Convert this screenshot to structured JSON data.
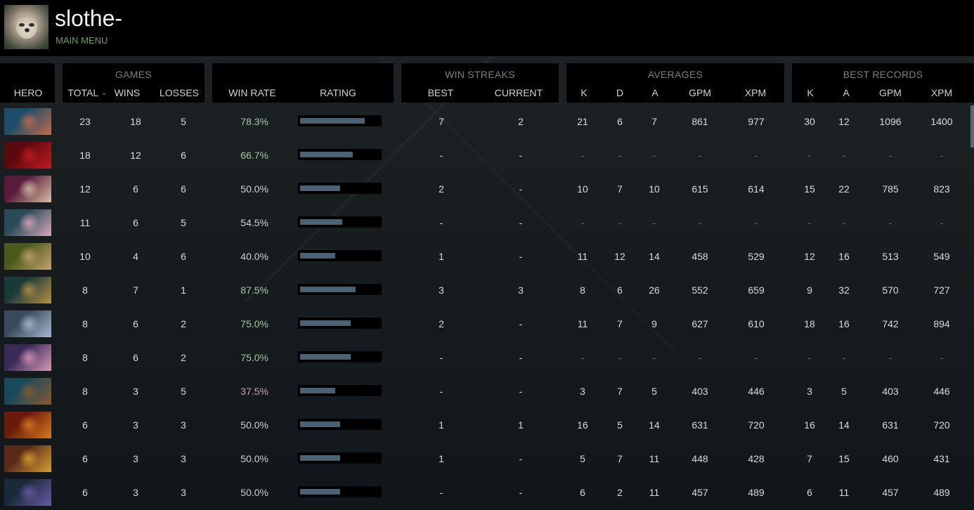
{
  "profile": {
    "username": "slothe-",
    "menu_link": "MAIN MENU"
  },
  "header": {
    "hero": {
      "label": "HERO"
    },
    "games": {
      "group": "GAMES",
      "total": "TOTAL",
      "wins": "WINS",
      "losses": "LOSSES",
      "sort_icon": "chevron-down"
    },
    "winrate": {
      "winrate": "WIN RATE",
      "rating": "RATING"
    },
    "streaks": {
      "group": "WIN STREAKS",
      "best": "BEST",
      "current": "CURRENT"
    },
    "averages": {
      "group": "AVERAGES",
      "k": "K",
      "d": "D",
      "a": "A",
      "gpm": "GPM",
      "xpm": "XPM"
    },
    "records": {
      "group": "BEST RECORDS",
      "k": "K",
      "a": "A",
      "gpm": "GPM",
      "xpm": "XPM"
    }
  },
  "colors": {
    "win_good": "#a6c8a0",
    "win_bad": "#caa6a6",
    "rating_fill": "#4a6271",
    "menu_link": "#6f9d5e"
  },
  "rows": [
    {
      "portrait": [
        "#1d4d6a",
        "#c46a4a"
      ],
      "total": "23",
      "wins": "18",
      "losses": "5",
      "winrate": "78.3%",
      "wr_class": "green",
      "rating": 92,
      "best": "7",
      "current": "2",
      "avg_k": "21",
      "avg_d": "6",
      "avg_a": "7",
      "avg_gpm": "861",
      "avg_xpm": "977",
      "rec_k": "30",
      "rec_a": "12",
      "rec_gpm": "1096",
      "rec_xpm": "1400"
    },
    {
      "portrait": [
        "#5a0a0e",
        "#c41a22"
      ],
      "total": "18",
      "wins": "12",
      "losses": "6",
      "winrate": "66.7%",
      "wr_class": "green",
      "rating": 75,
      "best": "-",
      "current": "-",
      "avg_k": "-",
      "avg_d": "-",
      "avg_a": "-",
      "avg_gpm": "-",
      "avg_xpm": "-",
      "rec_k": "-",
      "rec_a": "-",
      "rec_gpm": "-",
      "rec_xpm": "-"
    },
    {
      "portrait": [
        "#5a1a3a",
        "#d8c0a8"
      ],
      "total": "12",
      "wins": "6",
      "losses": "6",
      "winrate": "50.0%",
      "wr_class": "neutral",
      "rating": 57,
      "best": "2",
      "current": "-",
      "avg_k": "10",
      "avg_d": "7",
      "avg_a": "10",
      "avg_gpm": "615",
      "avg_xpm": "614",
      "rec_k": "15",
      "rec_a": "22",
      "rec_gpm": "785",
      "rec_xpm": "823"
    },
    {
      "portrait": [
        "#2a4a5a",
        "#d8a8b8"
      ],
      "total": "11",
      "wins": "6",
      "losses": "5",
      "winrate": "54.5%",
      "wr_class": "neutral",
      "rating": 60,
      "best": "-",
      "current": "-",
      "avg_k": "-",
      "avg_d": "-",
      "avg_a": "-",
      "avg_gpm": "-",
      "avg_xpm": "-",
      "rec_k": "-",
      "rec_a": "-",
      "rec_gpm": "-",
      "rec_xpm": "-"
    },
    {
      "portrait": [
        "#4a5a1a",
        "#c8a070"
      ],
      "total": "10",
      "wins": "4",
      "losses": "6",
      "winrate": "40.0%",
      "wr_class": "neutral",
      "rating": 50,
      "best": "1",
      "current": "-",
      "avg_k": "11",
      "avg_d": "12",
      "avg_a": "14",
      "avg_gpm": "458",
      "avg_xpm": "529",
      "rec_k": "12",
      "rec_a": "16",
      "rec_gpm": "513",
      "rec_xpm": "549"
    },
    {
      "portrait": [
        "#1a3a3a",
        "#b89040"
      ],
      "total": "8",
      "wins": "7",
      "losses": "1",
      "winrate": "87.5%",
      "wr_class": "green",
      "rating": 79,
      "best": "3",
      "current": "3",
      "avg_k": "8",
      "avg_d": "6",
      "avg_a": "26",
      "avg_gpm": "552",
      "avg_xpm": "659",
      "rec_k": "9",
      "rec_a": "32",
      "rec_gpm": "570",
      "rec_xpm": "727"
    },
    {
      "portrait": [
        "#3a4a5a",
        "#a8b8d0"
      ],
      "total": "8",
      "wins": "6",
      "losses": "2",
      "winrate": "75.0%",
      "wr_class": "green",
      "rating": 72,
      "best": "2",
      "current": "-",
      "avg_k": "11",
      "avg_d": "7",
      "avg_a": "9",
      "avg_gpm": "627",
      "avg_xpm": "610",
      "rec_k": "18",
      "rec_a": "16",
      "rec_gpm": "742",
      "rec_xpm": "894"
    },
    {
      "portrait": [
        "#3a2a5a",
        "#d89ab8"
      ],
      "total": "8",
      "wins": "6",
      "losses": "2",
      "winrate": "75.0%",
      "wr_class": "green",
      "rating": 72,
      "best": "-",
      "current": "-",
      "avg_k": "-",
      "avg_d": "-",
      "avg_a": "-",
      "avg_gpm": "-",
      "avg_xpm": "-",
      "rec_k": "-",
      "rec_a": "-",
      "rec_gpm": "-",
      "rec_xpm": "-"
    },
    {
      "portrait": [
        "#1a4a5a",
        "#8a5a30"
      ],
      "total": "8",
      "wins": "3",
      "losses": "5",
      "winrate": "37.5%",
      "wr_class": "red",
      "rating": 50,
      "best": "-",
      "current": "-",
      "avg_k": "3",
      "avg_d": "7",
      "avg_a": "5",
      "avg_gpm": "403",
      "avg_xpm": "446",
      "rec_k": "3",
      "rec_a": "5",
      "rec_gpm": "403",
      "rec_xpm": "446"
    },
    {
      "portrait": [
        "#6a1a0a",
        "#d87a20"
      ],
      "total": "6",
      "wins": "3",
      "losses": "3",
      "winrate": "50.0%",
      "wr_class": "neutral",
      "rating": 57,
      "best": "1",
      "current": "1",
      "avg_k": "16",
      "avg_d": "5",
      "avg_a": "14",
      "avg_gpm": "631",
      "avg_xpm": "720",
      "rec_k": "16",
      "rec_a": "14",
      "rec_gpm": "631",
      "rec_xpm": "720"
    },
    {
      "portrait": [
        "#5a2a1a",
        "#d8a030"
      ],
      "total": "6",
      "wins": "3",
      "losses": "3",
      "winrate": "50.0%",
      "wr_class": "neutral",
      "rating": 57,
      "best": "1",
      "current": "-",
      "avg_k": "5",
      "avg_d": "7",
      "avg_a": "11",
      "avg_gpm": "448",
      "avg_xpm": "428",
      "rec_k": "7",
      "rec_a": "15",
      "rec_gpm": "460",
      "rec_xpm": "431"
    },
    {
      "portrait": [
        "#1a2a3a",
        "#6a5aa8"
      ],
      "total": "6",
      "wins": "3",
      "losses": "3",
      "winrate": "50.0%",
      "wr_class": "neutral",
      "rating": 57,
      "best": "-",
      "current": "-",
      "avg_k": "6",
      "avg_d": "2",
      "avg_a": "11",
      "avg_gpm": "457",
      "avg_xpm": "489",
      "rec_k": "6",
      "rec_a": "11",
      "rec_gpm": "457",
      "rec_xpm": "489"
    }
  ]
}
